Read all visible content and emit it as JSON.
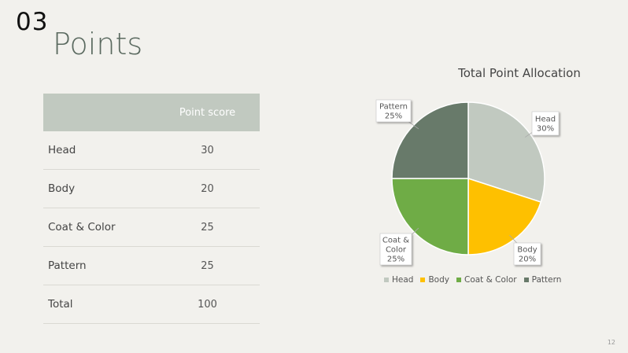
{
  "section_number": "03",
  "title": "Points",
  "table": {
    "header_label": "",
    "header_score": "Point score",
    "rows": [
      {
        "label": "Head",
        "score": "30"
      },
      {
        "label": "Body",
        "score": "20"
      },
      {
        "label": "Coat & Color",
        "score": "25"
      },
      {
        "label": "Pattern",
        "score": "25"
      },
      {
        "label": "Total",
        "score": "100"
      }
    ]
  },
  "chart_data": {
    "type": "pie",
    "title": "Total Point Allocation",
    "categories": [
      "Head",
      "Body",
      "Coat & Color",
      "Pattern"
    ],
    "values": [
      30,
      20,
      25,
      25
    ],
    "labels": [
      "30%",
      "20%",
      "25%",
      "25%"
    ],
    "colors": [
      "#c1c9c0",
      "#fec000",
      "#6fac46",
      "#687a6a"
    ],
    "legend": "bottom"
  },
  "page_number": "12"
}
